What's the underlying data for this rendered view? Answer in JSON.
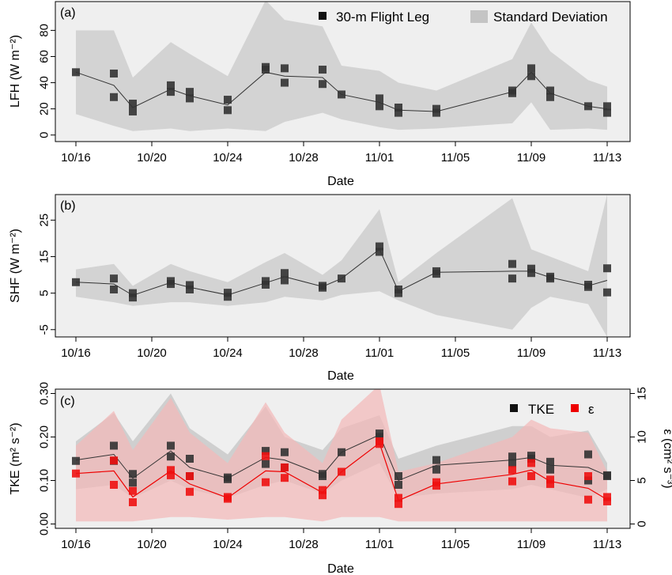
{
  "chart_data": [
    {
      "type": "scatter",
      "panel_label": "(a)",
      "xlabel": "Date",
      "ylabel": "LFH (W m⁻²)",
      "x_ticks": [
        "10/16",
        "10/20",
        "10/24",
        "10/28",
        "11/01",
        "11/05",
        "11/09",
        "11/13"
      ],
      "y_ticks": [
        "0",
        "20",
        "40",
        "60",
        "80"
      ],
      "ylim": [
        -5,
        102
      ],
      "legend": {
        "points": "30-m Flight Leg",
        "band": "Standard Deviation",
        "position": "top-right"
      },
      "colors": {
        "points": "#333333",
        "line": "#333333",
        "band": "#d3d3d3",
        "background": "#efefef"
      },
      "points": [
        [
          0,
          48
        ],
        [
          2,
          47
        ],
        [
          2,
          29
        ],
        [
          3,
          24
        ],
        [
          3,
          18
        ],
        [
          5,
          38
        ],
        [
          5,
          33
        ],
        [
          6,
          33
        ],
        [
          6,
          28
        ],
        [
          8,
          27
        ],
        [
          8,
          19
        ],
        [
          10,
          52
        ],
        [
          10,
          50
        ],
        [
          11,
          51
        ],
        [
          11,
          40
        ],
        [
          13,
          50
        ],
        [
          13,
          39
        ],
        [
          14,
          31
        ],
        [
          16,
          28
        ],
        [
          16,
          22
        ],
        [
          17,
          21
        ],
        [
          17,
          17
        ],
        [
          19,
          20
        ],
        [
          19,
          17
        ],
        [
          23,
          34
        ],
        [
          23,
          32
        ],
        [
          24,
          51
        ],
        [
          24,
          45
        ],
        [
          25,
          34
        ],
        [
          25,
          29
        ],
        [
          27,
          22
        ],
        [
          28,
          22
        ],
        [
          28,
          17
        ]
      ],
      "mean_line": [
        [
          0,
          48
        ],
        [
          2,
          38
        ],
        [
          3,
          21
        ],
        [
          5,
          35
        ],
        [
          6,
          30
        ],
        [
          8,
          23
        ],
        [
          10,
          48
        ],
        [
          11,
          45
        ],
        [
          13,
          44
        ],
        [
          14,
          31
        ],
        [
          16,
          25
        ],
        [
          17,
          19
        ],
        [
          19,
          18
        ],
        [
          23,
          33
        ],
        [
          24,
          48
        ],
        [
          25,
          32
        ],
        [
          27,
          22
        ],
        [
          28,
          20
        ]
      ],
      "band": [
        [
          0,
          16,
          80
        ],
        [
          2,
          7,
          80
        ],
        [
          3,
          3,
          44
        ],
        [
          5,
          5,
          71
        ],
        [
          6,
          3,
          62
        ],
        [
          8,
          5,
          45
        ],
        [
          10,
          3,
          103
        ],
        [
          11,
          10,
          88
        ],
        [
          13,
          17,
          83
        ],
        [
          14,
          12,
          53
        ],
        [
          16,
          6,
          49
        ],
        [
          17,
          4,
          40
        ],
        [
          19,
          5,
          34
        ],
        [
          23,
          9,
          58
        ],
        [
          24,
          25,
          86
        ],
        [
          25,
          4,
          64
        ],
        [
          27,
          5,
          42
        ],
        [
          28,
          4,
          37
        ]
      ]
    },
    {
      "type": "scatter",
      "panel_label": "(b)",
      "xlabel": "Date",
      "ylabel": "SHF (W m⁻²)",
      "x_ticks": [
        "10/16",
        "10/20",
        "10/24",
        "10/28",
        "11/01",
        "11/05",
        "11/09",
        "11/13"
      ],
      "y_ticks": [
        "-5",
        "5",
        "15",
        "25"
      ],
      "ylim": [
        -7,
        32
      ],
      "colors": {
        "points": "#333333",
        "line": "#333333",
        "band": "#d3d3d3",
        "background": "#efefef"
      },
      "points": [
        [
          0,
          8
        ],
        [
          2,
          9
        ],
        [
          2,
          6
        ],
        [
          3,
          5
        ],
        [
          3,
          3.8
        ],
        [
          5,
          8.3
        ],
        [
          5,
          7.5
        ],
        [
          6,
          7.2
        ],
        [
          6,
          6
        ],
        [
          8,
          5.1
        ],
        [
          8,
          4
        ],
        [
          10,
          8.3
        ],
        [
          10,
          7.3
        ],
        [
          11,
          10.5
        ],
        [
          11,
          8.5
        ],
        [
          13,
          7
        ],
        [
          13,
          6.5
        ],
        [
          14,
          9
        ],
        [
          16,
          17.8
        ],
        [
          16,
          16.3
        ],
        [
          17,
          6
        ],
        [
          17,
          5
        ],
        [
          19,
          11
        ],
        [
          19,
          10.3
        ],
        [
          23,
          13
        ],
        [
          23,
          9
        ],
        [
          24,
          11.7
        ],
        [
          24,
          10.5
        ],
        [
          25,
          9.5
        ],
        [
          25,
          9
        ],
        [
          27,
          7.3
        ],
        [
          27,
          6.7
        ],
        [
          28,
          11.8
        ],
        [
          28,
          5.2
        ]
      ],
      "mean_line": [
        [
          0,
          8
        ],
        [
          2,
          7.5
        ],
        [
          3,
          4.4
        ],
        [
          5,
          7.9
        ],
        [
          6,
          6.6
        ],
        [
          8,
          4.5
        ],
        [
          10,
          7.8
        ],
        [
          11,
          9.5
        ],
        [
          13,
          6.8
        ],
        [
          14,
          9
        ],
        [
          16,
          17
        ],
        [
          17,
          5.5
        ],
        [
          19,
          10.7
        ],
        [
          23,
          11
        ],
        [
          24,
          11
        ],
        [
          25,
          9.3
        ],
        [
          27,
          7
        ],
        [
          28,
          8.5
        ]
      ],
      "band": [
        [
          0,
          4,
          11.5
        ],
        [
          2,
          2.5,
          13
        ],
        [
          3,
          1.5,
          7
        ],
        [
          5,
          2.5,
          13
        ],
        [
          6,
          2.5,
          11
        ],
        [
          8,
          1.5,
          8
        ],
        [
          10,
          2.5,
          13.5
        ],
        [
          11,
          4,
          16
        ],
        [
          13,
          3,
          10
        ],
        [
          14,
          4.5,
          14
        ],
        [
          16,
          5.5,
          28
        ],
        [
          17,
          3,
          8
        ],
        [
          19,
          -1,
          16
        ],
        [
          23,
          -5,
          31
        ],
        [
          24,
          1,
          17
        ],
        [
          25,
          4,
          15
        ],
        [
          27,
          2,
          11
        ],
        [
          28,
          -7,
          32
        ]
      ]
    },
    {
      "type": "scatter",
      "panel_label": "(c)",
      "xlabel": "Date",
      "ylabel": "TKE (m² s⁻²)",
      "ylabel_right": "ε (cm² s⁻³)",
      "x_ticks": [
        "10/16",
        "10/20",
        "10/24",
        "10/28",
        "11/01",
        "11/05",
        "11/09",
        "11/13"
      ],
      "y_ticks": [
        "0.00",
        "0.10",
        "0.20",
        "0.30"
      ],
      "y_ticks_right": [
        "0",
        "5",
        "10",
        "15"
      ],
      "ylim": [
        -0.01,
        0.31
      ],
      "ylim_right": [
        -0.5,
        15.5
      ],
      "legend": {
        "series": [
          {
            "name": "TKE",
            "color": "#222222"
          },
          {
            "name": "ε",
            "color": "#ee0000"
          }
        ],
        "position": "top-right"
      },
      "colors": {
        "tke_band": "#c9c9c9",
        "eps_band": "#f4b8b8",
        "eps": "#ee0000",
        "tke": "#333333",
        "background": "#efefef"
      },
      "series": [
        {
          "name": "TKE",
          "points": [
            [
              0,
              0.145
            ],
            [
              2,
              0.18
            ],
            [
              2,
              0.145
            ],
            [
              3,
              0.115
            ],
            [
              3,
              0.095
            ],
            [
              5,
              0.18
            ],
            [
              5,
              0.155
            ],
            [
              6,
              0.15
            ],
            [
              6,
              0.11
            ],
            [
              8,
              0.107
            ],
            [
              8,
              0.103
            ],
            [
              10,
              0.168
            ],
            [
              10,
              0.138
            ],
            [
              11,
              0.165
            ],
            [
              11,
              0.13
            ],
            [
              13,
              0.115
            ],
            [
              13,
              0.11
            ],
            [
              14,
              0.165
            ],
            [
              16,
              0.208
            ],
            [
              16,
              0.2
            ],
            [
              17,
              0.11
            ],
            [
              17,
              0.09
            ],
            [
              19,
              0.147
            ],
            [
              19,
              0.125
            ],
            [
              23,
              0.155
            ],
            [
              23,
              0.14
            ],
            [
              24,
              0.157
            ],
            [
              24,
              0.15
            ],
            [
              25,
              0.143
            ],
            [
              25,
              0.125
            ],
            [
              27,
              0.16
            ],
            [
              27,
              0.1
            ],
            [
              28,
              0.112
            ],
            [
              28,
              0.11
            ]
          ],
          "mean_line": [
            [
              0,
              0.147
            ],
            [
              2,
              0.16
            ],
            [
              3,
              0.105
            ],
            [
              5,
              0.168
            ],
            [
              6,
              0.13
            ],
            [
              8,
              0.105
            ],
            [
              10,
              0.153
            ],
            [
              11,
              0.147
            ],
            [
              13,
              0.113
            ],
            [
              14,
              0.165
            ],
            [
              16,
              0.205
            ],
            [
              17,
              0.1
            ],
            [
              19,
              0.135
            ],
            [
              23,
              0.147
            ],
            [
              24,
              0.153
            ],
            [
              25,
              0.135
            ],
            [
              27,
              0.13
            ],
            [
              28,
              0.111
            ]
          ],
          "band": [
            [
              0,
              0.08,
              0.19
            ],
            [
              2,
              0.09,
              0.255
            ],
            [
              3,
              0.06,
              0.19
            ],
            [
              5,
              0.1,
              0.3
            ],
            [
              6,
              0.08,
              0.22
            ],
            [
              8,
              0.06,
              0.16
            ],
            [
              10,
              0.09,
              0.27
            ],
            [
              11,
              0.1,
              0.2
            ],
            [
              13,
              0.07,
              0.17
            ],
            [
              14,
              0.1,
              0.22
            ],
            [
              16,
              0.14,
              0.25
            ],
            [
              17,
              0.06,
              0.15
            ],
            [
              19,
              0.07,
              0.18
            ],
            [
              23,
              0.08,
              0.225
            ],
            [
              24,
              0.09,
              0.225
            ],
            [
              25,
              0.08,
              0.2
            ],
            [
              27,
              0.06,
              0.215
            ],
            [
              28,
              0.08,
              0.14
            ]
          ]
        },
        {
          "name": "ε",
          "points": [
            [
              0,
              5.8
            ],
            [
              2,
              7.3
            ],
            [
              2,
              4.5
            ],
            [
              3,
              3.8
            ],
            [
              3,
              2.5
            ],
            [
              5,
              6.2
            ],
            [
              5,
              5.6
            ],
            [
              6,
              5.5
            ],
            [
              6,
              3.7
            ],
            [
              8,
              3.1
            ],
            [
              8,
              2.9
            ],
            [
              10,
              7.8
            ],
            [
              10,
              4.8
            ],
            [
              11,
              6.5
            ],
            [
              11,
              5.3
            ],
            [
              13,
              3.9
            ],
            [
              13,
              3.3
            ],
            [
              14,
              6
            ],
            [
              16,
              9.5
            ],
            [
              16,
              9.2
            ],
            [
              17,
              3
            ],
            [
              17,
              2.3
            ],
            [
              19,
              4.8
            ],
            [
              19,
              4.4
            ],
            [
              23,
              6.2
            ],
            [
              23,
              4.9
            ],
            [
              24,
              7
            ],
            [
              24,
              5.5
            ],
            [
              25,
              5.1
            ],
            [
              25,
              4.6
            ],
            [
              27,
              5.5
            ],
            [
              27,
              2.8
            ],
            [
              28,
              3.1
            ],
            [
              28,
              2.6
            ]
          ],
          "mean_line": [
            [
              0,
              5.8
            ],
            [
              2,
              6.1
            ],
            [
              3,
              3.1
            ],
            [
              5,
              6.1
            ],
            [
              6,
              4.6
            ],
            [
              8,
              3
            ],
            [
              10,
              6.1
            ],
            [
              11,
              6
            ],
            [
              13,
              3.6
            ],
            [
              14,
              6
            ],
            [
              16,
              9.3
            ],
            [
              17,
              2.7
            ],
            [
              19,
              4.6
            ],
            [
              23,
              5.7
            ],
            [
              24,
              6.2
            ],
            [
              25,
              4.9
            ],
            [
              27,
              4.1
            ],
            [
              28,
              2.8
            ]
          ],
          "band": [
            [
              0,
              0.3,
              9
            ],
            [
              2,
              0.3,
              13
            ],
            [
              3,
              0.3,
              8.5
            ],
            [
              5,
              0.8,
              14.5
            ],
            [
              6,
              0.8,
              10.5
            ],
            [
              8,
              0.5,
              7
            ],
            [
              10,
              0.8,
              14
            ],
            [
              11,
              0.8,
              10.5
            ],
            [
              13,
              0.3,
              7
            ],
            [
              14,
              0.8,
              12
            ],
            [
              16,
              0.8,
              16
            ],
            [
              17,
              0.3,
              6
            ],
            [
              19,
              0.3,
              7
            ],
            [
              23,
              0.3,
              10
            ],
            [
              24,
              0.3,
              12
            ],
            [
              25,
              0.3,
              11
            ],
            [
              27,
              0.3,
              10.5
            ],
            [
              28,
              0.3,
              6
            ]
          ]
        }
      ]
    }
  ]
}
